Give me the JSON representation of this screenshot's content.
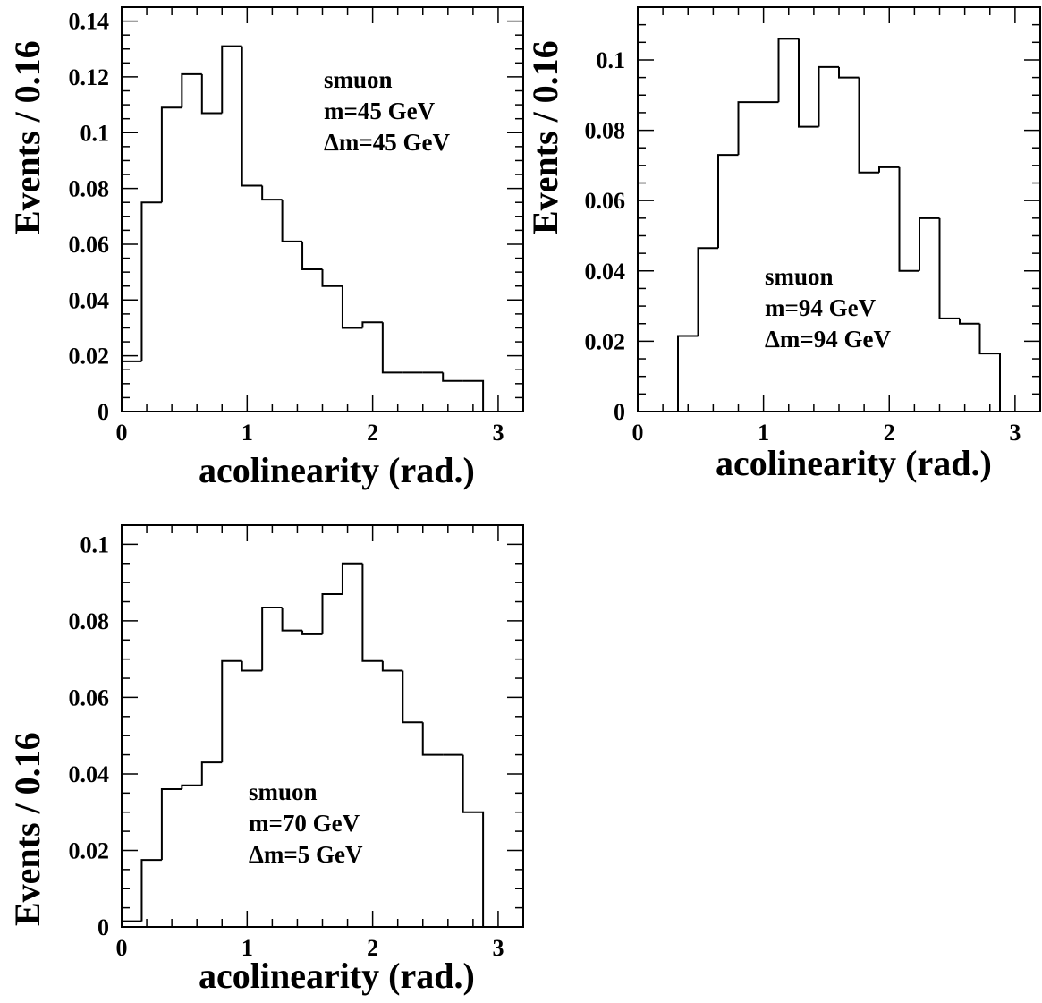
{
  "chart_data": [
    {
      "type": "histogram",
      "xlabel": "acolinearity (rad.)",
      "ylabel": "Events / 0.16",
      "xlim": [
        0,
        3.2
      ],
      "ylim": [
        0,
        0.145
      ],
      "xticks": [
        "0",
        "1",
        "2",
        "3"
      ],
      "xtick_values": [
        0,
        1,
        2,
        3
      ],
      "yticks": [
        "0",
        "0.02",
        "0.04",
        "0.06",
        "0.08",
        "0.1",
        "0.12",
        "0.14"
      ],
      "ytick_values": [
        0,
        0.02,
        0.04,
        0.06,
        0.08,
        0.1,
        0.12,
        0.14
      ],
      "annotation": [
        "smuon",
        "m=45 GeV",
        "Δm=45 GeV"
      ],
      "annotation_position": "top-right",
      "bin_edges": [
        0,
        0.16,
        0.32,
        0.48,
        0.64,
        0.8,
        0.96,
        1.12,
        1.28,
        1.44,
        1.6,
        1.76,
        1.92,
        2.08,
        2.24,
        2.4,
        2.56,
        2.72,
        2.88
      ],
      "values": [
        0.018,
        0.075,
        0.109,
        0.121,
        0.107,
        0.131,
        0.081,
        0.076,
        0.061,
        0.051,
        0.045,
        0.03,
        0.032,
        0.014,
        0.014,
        0.014,
        0.011,
        0.011
      ]
    },
    {
      "type": "histogram",
      "xlabel": "acolinearity (rad.)",
      "ylabel": "Events / 0.16",
      "xlim": [
        0,
        3.2
      ],
      "ylim": [
        0,
        0.115
      ],
      "xticks": [
        "0",
        "1",
        "2",
        "3"
      ],
      "xtick_values": [
        0,
        1,
        2,
        3
      ],
      "yticks": [
        "0",
        "0.02",
        "0.04",
        "0.06",
        "0.08",
        "0.1"
      ],
      "ytick_values": [
        0,
        0.02,
        0.04,
        0.06,
        0.08,
        0.1
      ],
      "annotation": [
        "smuon",
        "m=94 GeV",
        "Δm=94 GeV"
      ],
      "annotation_position": "center-right",
      "bin_edges": [
        0.32,
        0.48,
        0.64,
        0.8,
        0.96,
        1.12,
        1.28,
        1.44,
        1.6,
        1.76,
        1.92,
        2.08,
        2.24,
        2.4,
        2.56,
        2.72,
        2.88
      ],
      "values": [
        0.0215,
        0.0465,
        0.073,
        0.088,
        0.088,
        0.106,
        0.081,
        0.098,
        0.095,
        0.068,
        0.0695,
        0.04,
        0.055,
        0.0265,
        0.025,
        0.0165
      ]
    },
    {
      "type": "histogram",
      "xlabel": "acolinearity (rad.)",
      "ylabel": "Events / 0.16",
      "xlim": [
        0,
        3.2
      ],
      "ylim": [
        0,
        0.105
      ],
      "xticks": [
        "0",
        "1",
        "2",
        "3"
      ],
      "xtick_values": [
        0,
        1,
        2,
        3
      ],
      "yticks": [
        "0",
        "0.02",
        "0.04",
        "0.06",
        "0.08",
        "0.1"
      ],
      "ytick_values": [
        0,
        0.02,
        0.04,
        0.06,
        0.08,
        0.1
      ],
      "annotation": [
        "smuon",
        "m=70 GeV",
        "Δm=5 GeV"
      ],
      "annotation_position": "bottom-left",
      "bin_edges": [
        0,
        0.16,
        0.32,
        0.48,
        0.64,
        0.8,
        0.96,
        1.12,
        1.28,
        1.44,
        1.6,
        1.76,
        1.92,
        2.08,
        2.24,
        2.4,
        2.56,
        2.72,
        2.88
      ],
      "values": [
        0.0015,
        0.0175,
        0.036,
        0.037,
        0.043,
        0.0695,
        0.067,
        0.0835,
        0.0775,
        0.0765,
        0.087,
        0.095,
        0.0695,
        0.067,
        0.0535,
        0.045,
        0.045,
        0.03
      ]
    }
  ]
}
